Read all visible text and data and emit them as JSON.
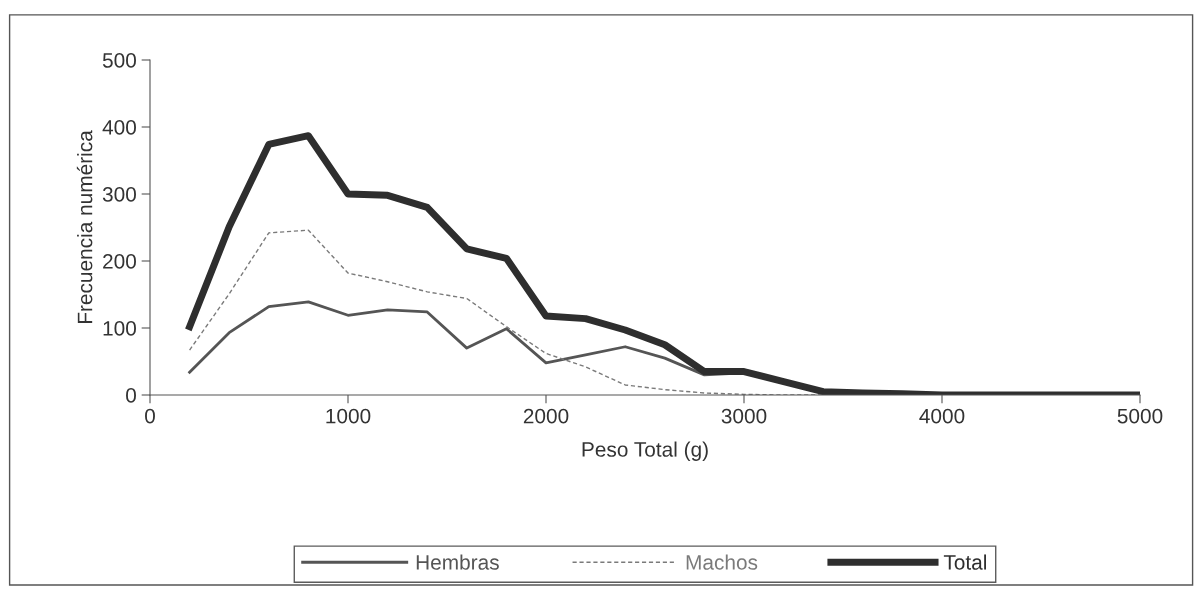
{
  "chart_data": {
    "type": "line",
    "xlabel": "Peso Total (g)",
    "ylabel": "Frecuencia numérica",
    "x": [
      200,
      400,
      600,
      800,
      1000,
      1200,
      1400,
      1600,
      1800,
      2000,
      2200,
      2400,
      2600,
      2800,
      3000,
      3200,
      3400,
      3600,
      3800,
      4000,
      4200,
      4400,
      4600,
      4800,
      5000
    ],
    "series": [
      {
        "name": "Hembras",
        "color": "#555555",
        "line_style": "solid",
        "values": [
          34,
          93,
          132,
          139,
          119,
          127,
          124,
          70,
          99,
          48,
          60,
          72,
          55,
          30,
          33,
          18,
          4,
          2,
          1,
          0,
          0,
          0,
          0,
          0,
          0
        ]
      },
      {
        "name": "Machos",
        "color": "#7a7a7a",
        "line_style": "dashed",
        "values": [
          67,
          151,
          242,
          246,
          182,
          169,
          154,
          144,
          102,
          62,
          42,
          15,
          8,
          3,
          1,
          0,
          0,
          0,
          0,
          0,
          0,
          0,
          0,
          0,
          0
        ]
      },
      {
        "name": "Total",
        "color": "#2e2e2e",
        "line_style": "solid",
        "values": [
          102,
          251,
          374,
          387,
          300,
          298,
          280,
          218,
          204,
          118,
          114,
          97,
          75,
          35,
          35,
          20,
          5,
          3,
          2,
          0,
          0,
          0,
          0,
          0,
          0
        ]
      }
    ],
    "xlim": [
      0,
      5000
    ],
    "ylim": [
      0,
      500
    ],
    "xticks": [
      0,
      1000,
      2000,
      3000,
      4000,
      5000
    ],
    "yticks": [
      0,
      100,
      200,
      300,
      400,
      500
    ],
    "grid": false,
    "legend": "bottom",
    "marker": "none"
  }
}
